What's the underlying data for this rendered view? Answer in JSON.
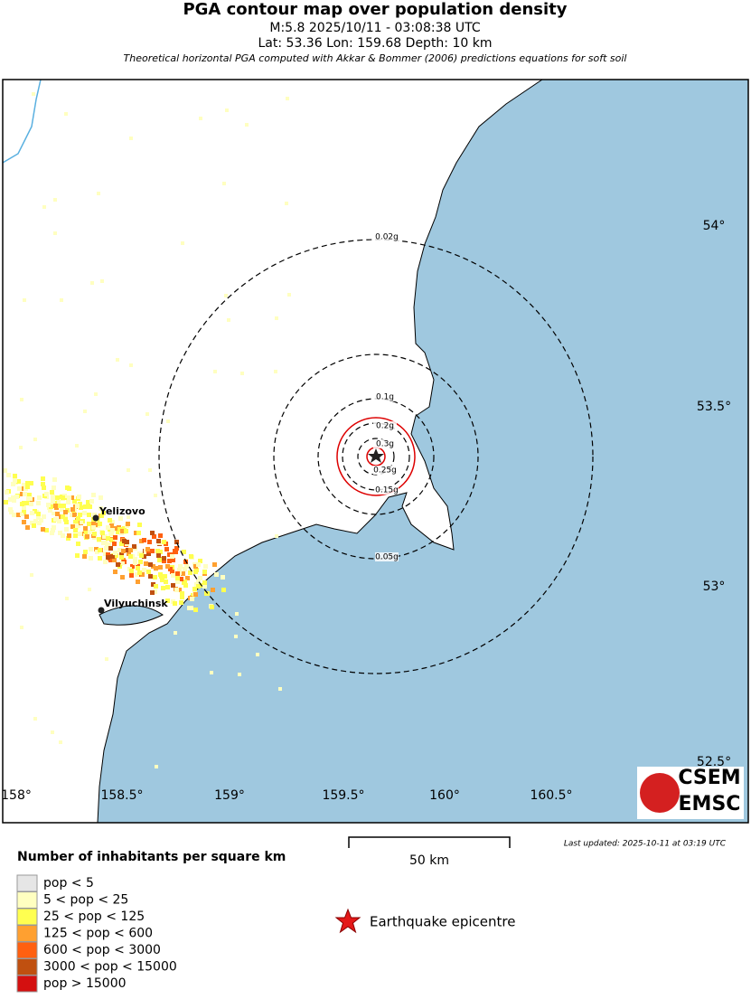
{
  "header": {
    "title": "PGA contour map over population density",
    "event": "M:5.8 2025/10/11 - 03:08:38 UTC",
    "location": "Lat: 53.36 Lon: 159.68 Depth: 10 km",
    "note": "Theoretical horizontal PGA computed with Akkar & Bommer (2006) predictions equations for soft soil"
  },
  "map": {
    "lon_labels": [
      "158°",
      "158.5°",
      "159°",
      "159.5°",
      "160°",
      "160.5°"
    ],
    "lat_labels": [
      "54°",
      "53.5°",
      "53°",
      "52.5°"
    ],
    "contours": [
      "0.02g",
      "0.05g",
      "0.1g",
      "0.2g",
      "0.3g",
      "0.25g",
      "0.15g"
    ],
    "cities": [
      "Yelizovo",
      "Vilyuchinsk"
    ],
    "logo": [
      "CSEM",
      "EMSC"
    ],
    "scale": "50 km",
    "last_updated": "Last updated: 2025-10-11 at 03:19 UTC"
  },
  "legend": {
    "title": "Number of inhabitants per square km",
    "items": [
      "pop < 5",
      "5 < pop < 25",
      "25 < pop < 125",
      "125 < pop < 600",
      "600 < pop < 3000",
      "3000 < pop < 15000",
      "pop > 15000"
    ],
    "epicentre": "Earthquake epicentre"
  }
}
